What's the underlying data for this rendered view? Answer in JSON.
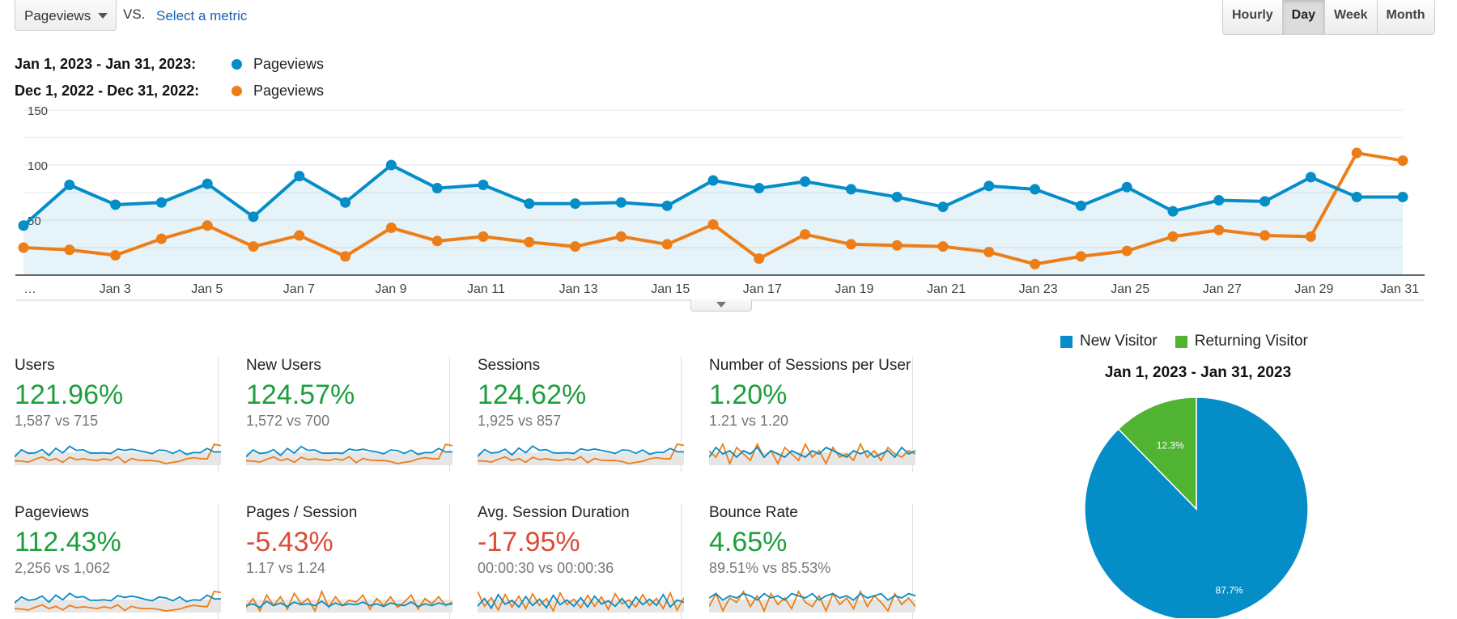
{
  "toolbar": {
    "metric_selected": "Pageviews",
    "vs_label": "VS.",
    "select_metric_link": "Select a metric",
    "period_buttons": [
      "Hourly",
      "Day",
      "Week",
      "Month"
    ],
    "active_period": "Day"
  },
  "legend": {
    "current_range": "Jan 1, 2023 - Jan 31, 2023:",
    "previous_range": "Dec 1, 2022 - Dec 31, 2022:",
    "current_series": "Pageviews",
    "previous_series": "Pageviews",
    "current_color": "#058dc7",
    "previous_color": "#ed7e17"
  },
  "chart_data": [
    {
      "type": "line",
      "x_tick_labels": [
        "…",
        "Jan 3",
        "Jan 5",
        "Jan 7",
        "Jan 9",
        "Jan 11",
        "Jan 13",
        "Jan 15",
        "Jan 17",
        "Jan 19",
        "Jan 21",
        "Jan 23",
        "Jan 25",
        "Jan 27",
        "Jan 29",
        "Jan 31"
      ],
      "y_tick_labels": [
        "150",
        "100",
        "50"
      ],
      "ylim": [
        0,
        150
      ],
      "grid": true,
      "series": [
        {
          "values": [
            45,
            82,
            64,
            66,
            83,
            53,
            90,
            66,
            100,
            79,
            82,
            65,
            65,
            66,
            63,
            86,
            79,
            85,
            78,
            71,
            62,
            81,
            78,
            63,
            80,
            58,
            68,
            67,
            89,
            71,
            71
          ],
          "color": "#058dc7"
        },
        {
          "values": [
            25,
            23,
            18,
            33,
            45,
            26,
            36,
            17,
            43,
            31,
            35,
            30,
            26,
            35,
            28,
            46,
            15,
            37,
            28,
            27,
            26,
            21,
            10,
            17,
            22,
            35,
            41,
            36,
            35,
            111,
            104
          ],
          "color": "#ed7e17"
        }
      ]
    },
    {
      "type": "pie",
      "title": "Jan 1, 2023 - Jan 31, 2023",
      "legend_position": "top",
      "slices": [
        {
          "label": "New Visitor",
          "value": 87.7,
          "display": "87.7%",
          "color": "#058dc7"
        },
        {
          "label": "Returning Visitor",
          "value": 12.3,
          "display": "12.3%",
          "color": "#50b432"
        }
      ]
    }
  ],
  "tiles": [
    {
      "name": "Users",
      "pct": "121.96%",
      "dir": "up",
      "vs": "1,587 vs 715",
      "spark_a": [
        45,
        82,
        64,
        66,
        83,
        53,
        90,
        66,
        100,
        79,
        82,
        65,
        65,
        66,
        63,
        86,
        79,
        85,
        78,
        71,
        62,
        81,
        78,
        63,
        80,
        58,
        68,
        67,
        89,
        71,
        71
      ],
      "spark_b": [
        25,
        23,
        18,
        33,
        45,
        26,
        36,
        17,
        43,
        31,
        35,
        30,
        26,
        35,
        28,
        46,
        15,
        37,
        28,
        27,
        26,
        21,
        10,
        17,
        22,
        35,
        41,
        36,
        35,
        111,
        104
      ]
    },
    {
      "name": "New Users",
      "pct": "124.57%",
      "dir": "up",
      "vs": "1,572 vs 700",
      "spark_a": [
        45,
        80,
        62,
        66,
        82,
        52,
        88,
        64,
        98,
        78,
        80,
        64,
        63,
        65,
        62,
        85,
        78,
        84,
        76,
        70,
        60,
        80,
        77,
        62,
        79,
        57,
        67,
        66,
        88,
        70,
        70
      ],
      "spark_b": [
        24,
        22,
        17,
        32,
        44,
        25,
        35,
        16,
        42,
        30,
        34,
        29,
        25,
        34,
        27,
        45,
        14,
        36,
        27,
        26,
        25,
        20,
        9,
        16,
        21,
        34,
        40,
        35,
        34,
        110,
        102
      ]
    },
    {
      "name": "Sessions",
      "pct": "124.62%",
      "dir": "up",
      "vs": "1,925 vs 857",
      "spark_a": [
        48,
        84,
        66,
        70,
        86,
        56,
        92,
        68,
        102,
        80,
        84,
        67,
        66,
        68,
        64,
        88,
        80,
        87,
        80,
        73,
        64,
        82,
        80,
        65,
        82,
        60,
        70,
        69,
        90,
        73,
        72
      ],
      "spark_b": [
        26,
        24,
        19,
        34,
        46,
        27,
        37,
        18,
        44,
        32,
        36,
        31,
        27,
        36,
        29,
        47,
        16,
        38,
        29,
        28,
        27,
        22,
        11,
        18,
        23,
        36,
        42,
        37,
        36,
        112,
        106
      ]
    },
    {
      "name": "Number of Sessions per User",
      "pct": "1.20%",
      "dir": "up",
      "vs": "1.21 vs 1.20",
      "spark_a": [
        60,
        63,
        61,
        62,
        60,
        62,
        61,
        63,
        60,
        62,
        61,
        60,
        62,
        61,
        60,
        62,
        61,
        63,
        62,
        61,
        60,
        62,
        61,
        62,
        60,
        61,
        62,
        60,
        63,
        61,
        62
      ],
      "spark_b": [
        62,
        60,
        64,
        58,
        63,
        61,
        59,
        64,
        60,
        62,
        58,
        63,
        61,
        59,
        64,
        60,
        62,
        58,
        63,
        60,
        61,
        59,
        64,
        60,
        62,
        59,
        63,
        61,
        60,
        62,
        61
      ]
    },
    {
      "name": "Pageviews",
      "pct": "112.43%",
      "dir": "up",
      "vs": "2,256 vs 1,062",
      "spark_a": [
        55,
        80,
        66,
        70,
        84,
        58,
        88,
        68,
        96,
        78,
        82,
        66,
        66,
        68,
        64,
        86,
        78,
        84,
        78,
        70,
        64,
        80,
        76,
        64,
        80,
        60,
        68,
        66,
        88,
        72,
        72
      ],
      "spark_b": [
        30,
        28,
        24,
        36,
        46,
        30,
        40,
        24,
        44,
        34,
        38,
        34,
        30,
        38,
        32,
        46,
        22,
        40,
        32,
        30,
        30,
        26,
        20,
        24,
        28,
        38,
        44,
        40,
        38,
        104,
        100
      ]
    },
    {
      "name": "Pages / Session",
      "pct": "-5.43%",
      "dir": "down",
      "vs": "1.17 vs 1.24",
      "spark_a": [
        50,
        52,
        48,
        55,
        50,
        53,
        49,
        54,
        51,
        52,
        50,
        55,
        49,
        53,
        50,
        52,
        51,
        54,
        50,
        52,
        49,
        53,
        51,
        50,
        54,
        49,
        52,
        50,
        53,
        51,
        52
      ],
      "spark_b": [
        48,
        58,
        44,
        62,
        50,
        60,
        46,
        64,
        52,
        58,
        44,
        66,
        48,
        60,
        50,
        56,
        54,
        62,
        46,
        58,
        50,
        60,
        48,
        54,
        62,
        46,
        58,
        52,
        60,
        50,
        54
      ]
    },
    {
      "name": "Avg. Session Duration",
      "pct": "-17.95%",
      "dir": "down",
      "vs": "00:00:30 vs 00:00:36",
      "spark_a": [
        40,
        60,
        35,
        70,
        45,
        55,
        38,
        65,
        42,
        58,
        36,
        68,
        44,
        56,
        40,
        62,
        38,
        66,
        46,
        54,
        40,
        60,
        36,
        64,
        44,
        58,
        42,
        70,
        38,
        56,
        50
      ],
      "spark_b": [
        78,
        40,
        62,
        30,
        70,
        38,
        66,
        34,
        72,
        42,
        60,
        28,
        74,
        44,
        58,
        36,
        68,
        40,
        64,
        32,
        72,
        46,
        56,
        38,
        70,
        42,
        60,
        34,
        74,
        30,
        62
      ]
    },
    {
      "name": "Bounce Rate",
      "pct": "4.65%",
      "dir": "up",
      "vs": "89.51% vs 85.53%",
      "spark_a": [
        64,
        66,
        63,
        65,
        64,
        66,
        65,
        63,
        66,
        64,
        65,
        63,
        66,
        65,
        64,
        66,
        63,
        65,
        66,
        64,
        65,
        63,
        66,
        64,
        65,
        66,
        63,
        65,
        64,
        66,
        65
      ],
      "spark_b": [
        60,
        66,
        58,
        64,
        62,
        67,
        60,
        65,
        58,
        66,
        61,
        64,
        59,
        67,
        62,
        60,
        65,
        58,
        66,
        61,
        64,
        59,
        67,
        60,
        65,
        62,
        58,
        66,
        61,
        64,
        60
      ]
    }
  ]
}
